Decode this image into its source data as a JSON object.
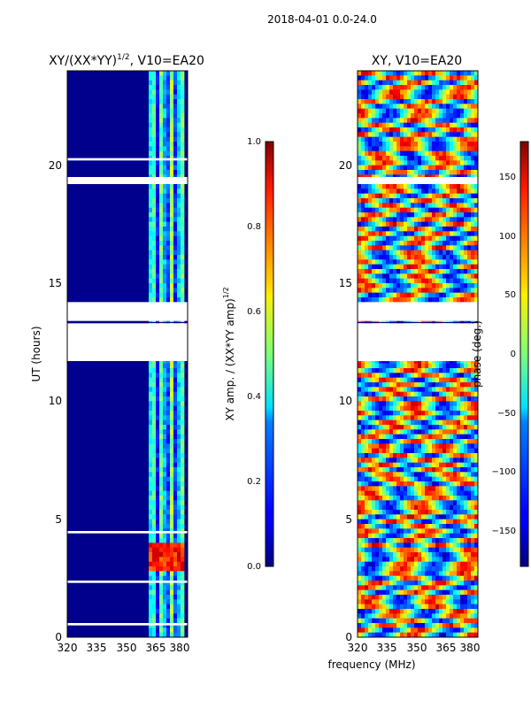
{
  "suptitle": "2018-04-01 0.0-24.0",
  "chart_data": [
    {
      "type": "heatmap",
      "title_prefix": "XY/(XX*YY)",
      "title_exponent": "1/2",
      "title_suffix": ", V10=EA20",
      "xlabel": "",
      "ylabel": "UT (hours)",
      "xlim": [
        320,
        381
      ],
      "ylim": [
        0,
        24
      ],
      "xticks": [
        "320",
        "335",
        "350",
        "365",
        "380"
      ],
      "yticks": [
        "0",
        "5",
        "10",
        "15",
        "20"
      ],
      "colorbar": {
        "label_prefix": "XY amp. / (XX*YY amp)",
        "label_exponent": "1/2",
        "range": [
          0.0,
          1.0
        ],
        "ticks": [
          "0.0",
          "0.2",
          "0.4",
          "0.6",
          "0.8",
          "1.0"
        ],
        "colormap": "jet"
      },
      "data_gaps_hours": [
        [
          11.7,
          13.3
        ],
        [
          13.4,
          14.2
        ],
        [
          19.2,
          19.5
        ],
        [
          20.2,
          20.3
        ],
        [
          4.4,
          4.5
        ],
        [
          2.3,
          2.4
        ],
        [
          0.5,
          0.6
        ]
      ],
      "bright_band_mhz": [
        362,
        379
      ],
      "high_amp_hours": [
        2.7,
        4.0
      ]
    },
    {
      "type": "heatmap",
      "title": "XY, V10=EA20",
      "xlabel": "frequency (MHz)",
      "ylabel": "",
      "xlim": [
        320,
        381
      ],
      "ylim": [
        0,
        24
      ],
      "xticks": [
        "320",
        "335",
        "350",
        "365",
        "380"
      ],
      "yticks": [
        "0",
        "5",
        "10",
        "15",
        "20"
      ],
      "colorbar": {
        "label": "phase (deg.)",
        "range": [
          -180,
          180
        ],
        "ticks": [
          "−150",
          "−100",
          "−50",
          "0",
          "50",
          "100",
          "150"
        ],
        "colormap": "jet"
      },
      "data_gaps_hours": [
        [
          11.7,
          13.3
        ],
        [
          13.4,
          14.2
        ],
        [
          19.2,
          19.5
        ]
      ]
    }
  ]
}
